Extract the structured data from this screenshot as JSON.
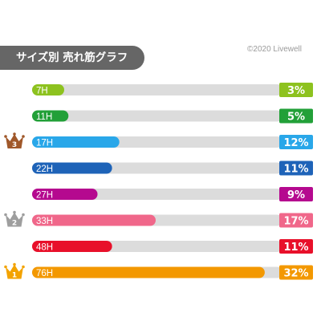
{
  "header": {
    "title": "サイズ別 売れ筋グラフ",
    "copyright": "©2020 Livewell"
  },
  "chart_data": {
    "type": "bar",
    "orientation": "horizontal",
    "categories": [
      "7H",
      "11H",
      "17H",
      "22H",
      "27H",
      "33H",
      "48H",
      "76H"
    ],
    "values": [
      3,
      5,
      12,
      11,
      9,
      17,
      11,
      32
    ],
    "value_labels": [
      "3%",
      "5%",
      "12%",
      "11%",
      "9%",
      "17%",
      "11%",
      "32%"
    ],
    "xlim": [
      0,
      34
    ],
    "colors": [
      "#8dc21f",
      "#22a038",
      "#29a7e9",
      "#1e63b8",
      "#b5098f",
      "#f0678a",
      "#e8102a",
      "#f39800"
    ],
    "track_color": "#dcdcdc",
    "ranks": [
      {
        "category": "17H",
        "rank": "3",
        "color": "#a0582a"
      },
      {
        "category": "33H",
        "rank": "2",
        "color": "#9e9e9e"
      },
      {
        "category": "76H",
        "rank": "1",
        "color": "#f3a300"
      }
    ]
  }
}
